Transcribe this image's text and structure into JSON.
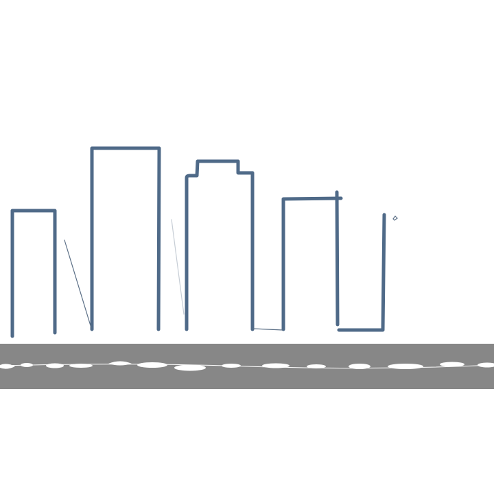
{
  "scene": {
    "colors": {
      "background": "#ffffff",
      "building_stroke": "#4f6a88",
      "thin_stroke": "#5b6f86",
      "road": "#878787",
      "lane_marking": "#ffffff"
    }
  }
}
